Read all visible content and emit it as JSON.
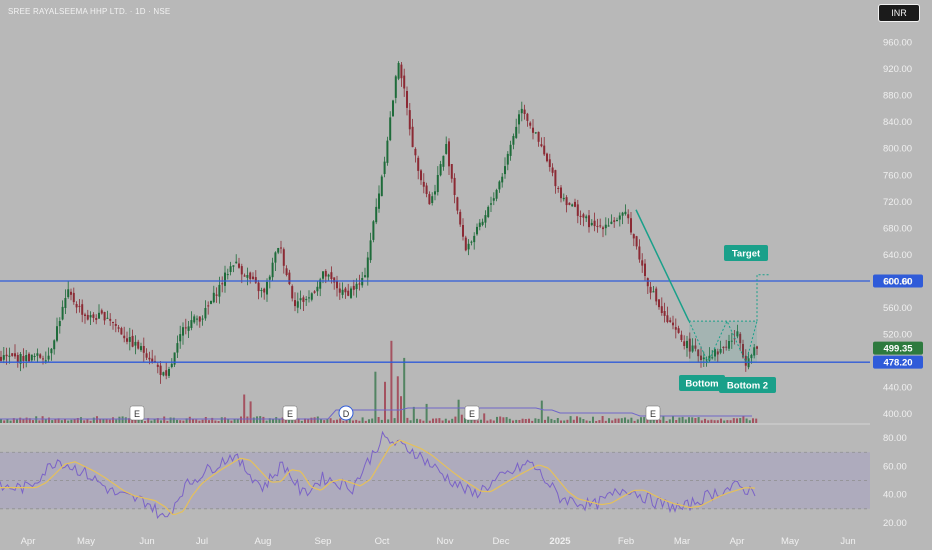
{
  "header": {
    "title": "SREE RAYALSEEMA HHP LTD. · 1D · NSE",
    "currency": "INR"
  },
  "colors": {
    "background": "#b8b8b8",
    "up_candle": "#1e6b3a",
    "down_candle": "#8b2a34",
    "level_line": "#2f5bd9",
    "pattern": "#1aa08a",
    "rsi_line": "#7b63c7",
    "rsi_ma": "#e5c15a",
    "price_badge": "#2d7a3e"
  },
  "chart_data": {
    "type": "candlestick",
    "title": "SREE RAYALSEEMA HHP LTD. · 1D · NSE",
    "y_axis": {
      "unit": "INR",
      "ylim": [
        385,
        985
      ],
      "ticks": [
        "960.00",
        "920.00",
        "880.00",
        "840.00",
        "800.00",
        "760.00",
        "720.00",
        "680.00",
        "640.00",
        "600.00",
        "560.00",
        "520.00",
        "440.00",
        "400.00"
      ]
    },
    "x_axis": {
      "ticks": [
        "Apr",
        "May",
        "Jun",
        "Jul",
        "Aug",
        "Sep",
        "Oct",
        "Nov",
        "Dec",
        "2025",
        "Feb",
        "Mar",
        "Apr",
        "May",
        "Jun"
      ]
    },
    "price_path": [
      [
        "Apr",
        485
      ],
      [
        "Apr",
        488
      ],
      [
        "Apr",
        583
      ],
      [
        "May",
        545
      ],
      [
        "May",
        548
      ],
      [
        "May",
        512
      ],
      [
        "Jun",
        490
      ],
      [
        "Jun",
        452
      ],
      [
        "Jun",
        535
      ],
      [
        "Jul",
        548
      ],
      [
        "Jul",
        630
      ],
      [
        "Aug",
        580
      ],
      [
        "Aug",
        658
      ],
      [
        "Aug",
        568
      ],
      [
        "Aug",
        575
      ],
      [
        "Sep",
        612
      ],
      [
        "Sep",
        580
      ],
      [
        "Sep",
        600
      ],
      [
        "Oct",
        770
      ],
      [
        "Oct",
        935
      ],
      [
        "Oct",
        790
      ],
      [
        "Oct",
        715
      ],
      [
        "Nov",
        805
      ],
      [
        "Nov",
        648
      ],
      [
        "Nov",
        690
      ],
      [
        "Dec",
        760
      ],
      [
        "Dec",
        865
      ],
      [
        "Dec",
        800
      ],
      [
        "2025",
        730
      ],
      [
        "2025",
        680
      ],
      [
        "Feb",
        700
      ],
      [
        "Feb",
        605
      ],
      [
        "Feb",
        545
      ],
      [
        "Mar",
        510
      ],
      [
        "Mar",
        485
      ],
      [
        "Mar",
        495
      ],
      [
        "Apr",
        520
      ],
      [
        "Apr",
        478
      ],
      [
        "Apr",
        499
      ]
    ],
    "levels": [
      {
        "value": 600.6,
        "label": "600.60"
      },
      {
        "value": 478.2,
        "label": "478.20"
      }
    ],
    "last_price": {
      "value": 499.35,
      "label": "499.35"
    },
    "annotations": [
      "Target",
      "Bottom",
      "Bottom 2"
    ],
    "event_markers": [
      {
        "label": "E",
        "at": "May"
      },
      {
        "label": "E",
        "at": "Aug"
      },
      {
        "label": "D",
        "at": "Sep"
      },
      {
        "label": "E",
        "at": "Nov"
      },
      {
        "label": "E",
        "at": "Feb"
      }
    ],
    "rsi": {
      "ylim": [
        15,
        90
      ],
      "ticks": [
        "80.00",
        "60.00",
        "40.00",
        "20.00"
      ],
      "band": [
        30,
        70
      ],
      "path": [
        [
          "Apr",
          45
        ],
        [
          "Apr",
          65
        ],
        [
          "May",
          55
        ],
        [
          "May",
          40
        ],
        [
          "Jun",
          35
        ],
        [
          "Jun",
          22
        ],
        [
          "Jun",
          45
        ],
        [
          "Jul",
          55
        ],
        [
          "Jul",
          68
        ],
        [
          "Aug",
          45
        ],
        [
          "Aug",
          62
        ],
        [
          "Aug",
          40
        ],
        [
          "Sep",
          52
        ],
        [
          "Sep",
          45
        ],
        [
          "Oct",
          80
        ],
        [
          "Oct",
          71
        ],
        [
          "Nov",
          53
        ],
        [
          "Nov",
          40
        ],
        [
          "Dec",
          52
        ],
        [
          "Dec",
          63
        ],
        [
          "2025",
          38
        ],
        [
          "2025",
          32
        ],
        [
          "Feb",
          45
        ],
        [
          "Feb",
          35
        ],
        [
          "Mar",
          30
        ],
        [
          "Mar",
          40
        ],
        [
          "Apr",
          46
        ],
        [
          "Apr",
          43
        ]
      ]
    },
    "grid": false,
    "legend": "none"
  }
}
